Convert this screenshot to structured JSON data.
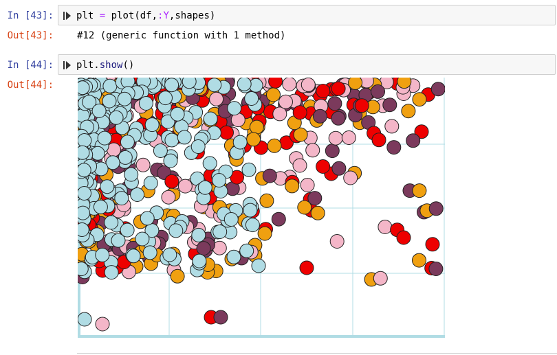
{
  "cells": [
    {
      "in_prompt": "In [43]:",
      "code": {
        "var": "plt",
        "op": "=",
        "fn": "plot",
        "args_a": "(df,",
        "sym": ":Y",
        "args_b": ",shapes)"
      },
      "out_prompt": "Out[43]:",
      "output": "#12 (generic function with 1 method)"
    },
    {
      "in_prompt": "In [44]:",
      "code": {
        "obj": "plt.",
        "method": "show",
        "args": "()"
      },
      "out_prompt": "Out[44]:"
    }
  ],
  "icons": {
    "run": "run-cell-icon"
  },
  "plot": {
    "type": "scatter",
    "colors": {
      "red": "#ee0000",
      "orange": "#f0a010",
      "pink": "#f4b6c8",
      "maroon": "#7b3a5c",
      "lightblue": "#b0dce4"
    },
    "grid_color": "#b0dce4"
  }
}
